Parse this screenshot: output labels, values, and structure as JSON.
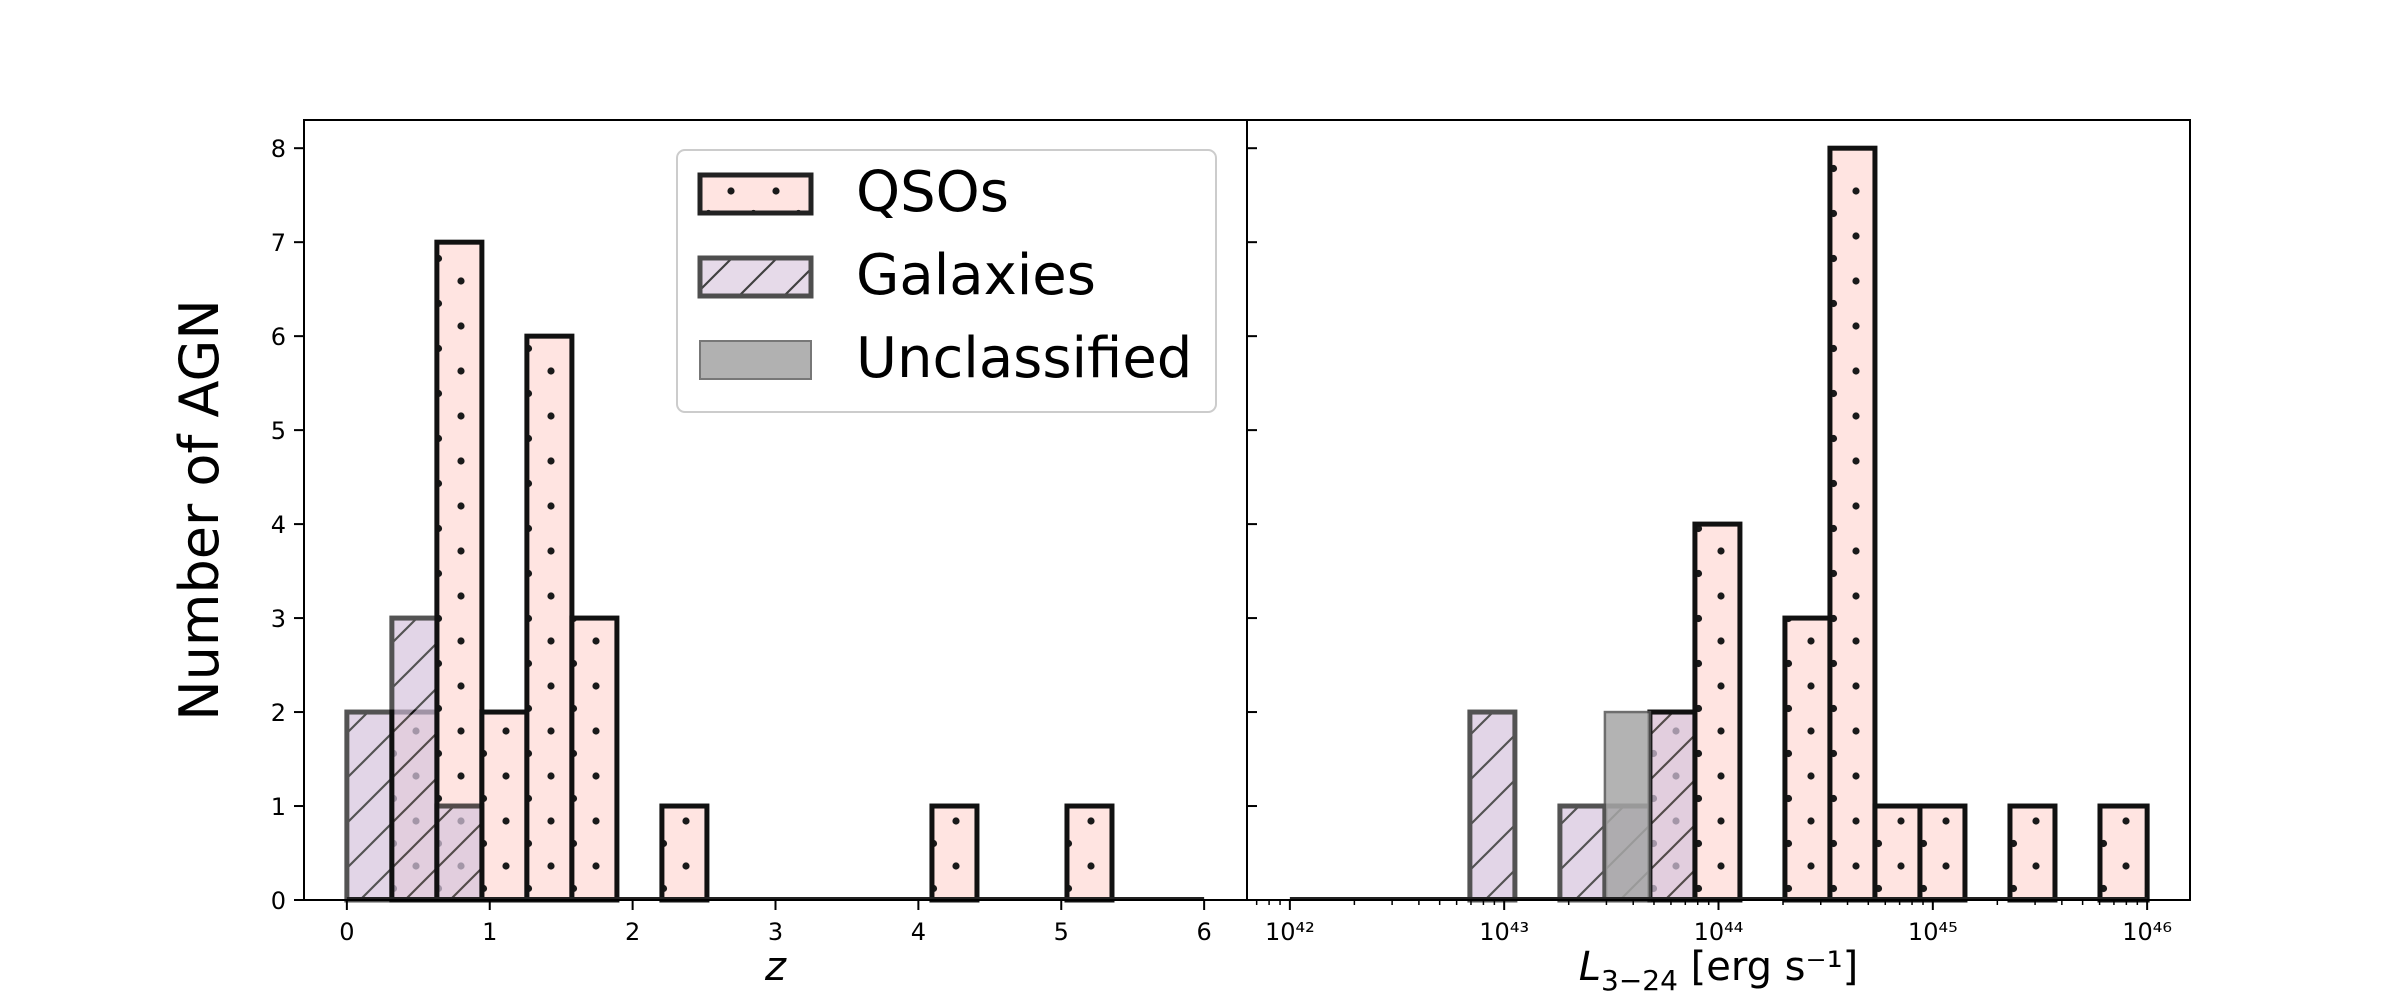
{
  "figure": {
    "ylabel": "Number of AGN",
    "legend": [
      {
        "label": "QSOs",
        "kind": "qso",
        "fill": "#ffe4e1"
      },
      {
        "label": "Galaxies",
        "kind": "galaxy",
        "fill": "#e0d2e4"
      },
      {
        "label": "Unclassified",
        "kind": "unclassified",
        "fill": "#b1b1b1"
      }
    ],
    "legend_position": "top-right of left panel"
  },
  "chart_data": [
    {
      "type": "bar",
      "panel": "left",
      "xlabel_main": "z",
      "xlabel_rest": "",
      "xscale": "linear",
      "xlim": [
        -0.3,
        6.3
      ],
      "ylim": [
        0,
        8.3
      ],
      "xticks": [
        {
          "value": 0,
          "label": "0"
        },
        {
          "value": 1,
          "label": "1"
        },
        {
          "value": 2,
          "label": "2"
        },
        {
          "value": 3,
          "label": "3"
        },
        {
          "value": 4,
          "label": "4"
        },
        {
          "value": 5,
          "label": "5"
        },
        {
          "value": 6,
          "label": "6"
        }
      ],
      "yticks": [
        0,
        1,
        2,
        3,
        4,
        5,
        6,
        7,
        8
      ],
      "bin_edges": [
        0,
        0.315,
        0.63,
        0.945,
        1.26,
        1.575,
        1.89,
        2.205,
        2.52,
        2.835,
        3.15,
        3.465,
        3.78,
        4.095,
        4.41,
        4.725,
        5.04,
        5.355,
        5.67,
        6.0
      ],
      "series": [
        {
          "name": "QSOs",
          "kind": "qso",
          "counts": [
            0,
            2,
            7,
            2,
            6,
            3,
            0,
            1,
            0,
            0,
            0,
            0,
            0,
            1,
            0,
            0,
            1,
            0,
            0
          ]
        },
        {
          "name": "Galaxies",
          "kind": "galaxy",
          "counts": [
            2,
            3,
            1,
            0,
            0,
            0,
            0,
            0,
            0,
            0,
            0,
            0,
            0,
            0,
            0,
            0,
            0,
            0,
            0
          ]
        },
        {
          "name": "Unclassified",
          "kind": "unclassified",
          "counts": [
            0,
            0,
            0,
            0,
            0,
            0,
            0,
            0,
            0,
            0,
            0,
            0,
            0,
            0,
            0,
            0,
            0,
            0,
            0
          ]
        }
      ]
    },
    {
      "type": "bar",
      "panel": "right",
      "xlabel_main": "L",
      "xlabel_sub": "3−24",
      "xlabel_rest": " [erg s⁻¹]",
      "xscale": "log",
      "xlim": [
        41.8,
        46.2
      ],
      "ylim": [
        0,
        8.3
      ],
      "xticks": [
        {
          "value": 42,
          "label": "10⁴²"
        },
        {
          "value": 43,
          "label": "10⁴³"
        },
        {
          "value": 44,
          "label": "10⁴⁴"
        },
        {
          "value": 45,
          "label": "10⁴⁵"
        },
        {
          "value": 46,
          "label": "10⁴⁶"
        }
      ],
      "bin_edges": [
        42.0,
        42.21,
        42.42,
        42.63,
        42.84,
        43.05,
        43.26,
        43.47,
        43.68,
        43.89,
        44.1,
        44.31,
        44.52,
        44.73,
        44.94,
        45.15,
        45.36,
        45.57,
        45.78,
        46.0
      ],
      "series": [
        {
          "name": "QSOs",
          "kind": "qso",
          "counts": [
            0,
            0,
            0,
            0,
            0,
            0,
            0,
            0,
            2,
            4,
            0,
            3,
            8,
            1,
            1,
            0,
            1,
            0,
            1
          ]
        },
        {
          "name": "Galaxies",
          "kind": "galaxy",
          "counts": [
            0,
            0,
            0,
            0,
            2,
            0,
            1,
            1,
            2,
            0,
            0,
            0,
            0,
            0,
            0,
            0,
            0,
            0,
            0
          ]
        },
        {
          "name": "Unclassified",
          "kind": "unclassified",
          "counts": [
            0,
            0,
            0,
            0,
            0,
            0,
            0,
            2,
            0,
            0,
            0,
            0,
            0,
            0,
            0,
            0,
            0,
            0,
            0
          ]
        }
      ]
    }
  ]
}
